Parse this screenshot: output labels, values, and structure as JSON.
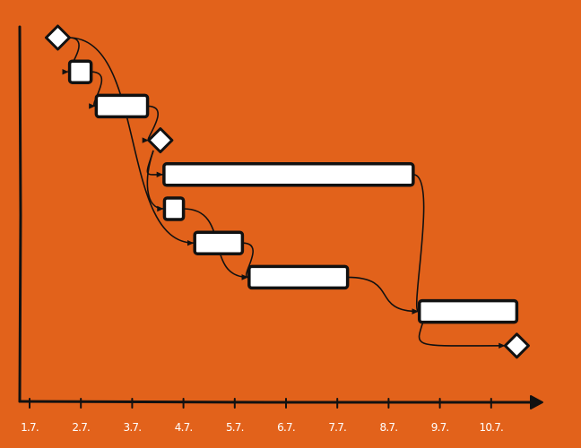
{
  "colors": {
    "background": "#E2621B",
    "stroke": "#111111",
    "fill": "#ffffff",
    "label": "#ffffff"
  },
  "chart_data": {
    "type": "gantt",
    "x_ticks": [
      "1.7.",
      "2.7.",
      "3.7.",
      "4.7.",
      "5.7.",
      "6.7.",
      "7.7.",
      "8.7.",
      "9.7.",
      "10.7."
    ],
    "tasks": [
      {
        "kind": "milestone",
        "start": 1.55
      },
      {
        "kind": "task",
        "start": 1.78,
        "end": 2.2
      },
      {
        "kind": "task",
        "start": 2.3,
        "end": 3.3
      },
      {
        "kind": "milestone",
        "start": 3.55
      },
      {
        "kind": "task",
        "start": 3.62,
        "end": 8.48
      },
      {
        "kind": "task",
        "start": 3.63,
        "end": 4.0
      },
      {
        "kind": "task",
        "start": 4.22,
        "end": 5.15
      },
      {
        "kind": "task",
        "start": 5.28,
        "end": 7.2
      },
      {
        "kind": "task",
        "start": 8.6,
        "end": 10.5
      },
      {
        "kind": "milestone",
        "start": 10.5
      }
    ],
    "dependencies": [
      {
        "from": 0,
        "to": 1
      },
      {
        "from": 1,
        "to": 2
      },
      {
        "from": 2,
        "to": 3
      },
      {
        "from": 3,
        "to": 4
      },
      {
        "from": 3,
        "to": 5
      },
      {
        "from": 0,
        "to": 6
      },
      {
        "from": 6,
        "to": 7
      },
      {
        "from": 5,
        "to": 7
      },
      {
        "from": 4,
        "to": 8
      },
      {
        "from": 7,
        "to": 8
      },
      {
        "from": 8,
        "to": 9
      }
    ]
  }
}
